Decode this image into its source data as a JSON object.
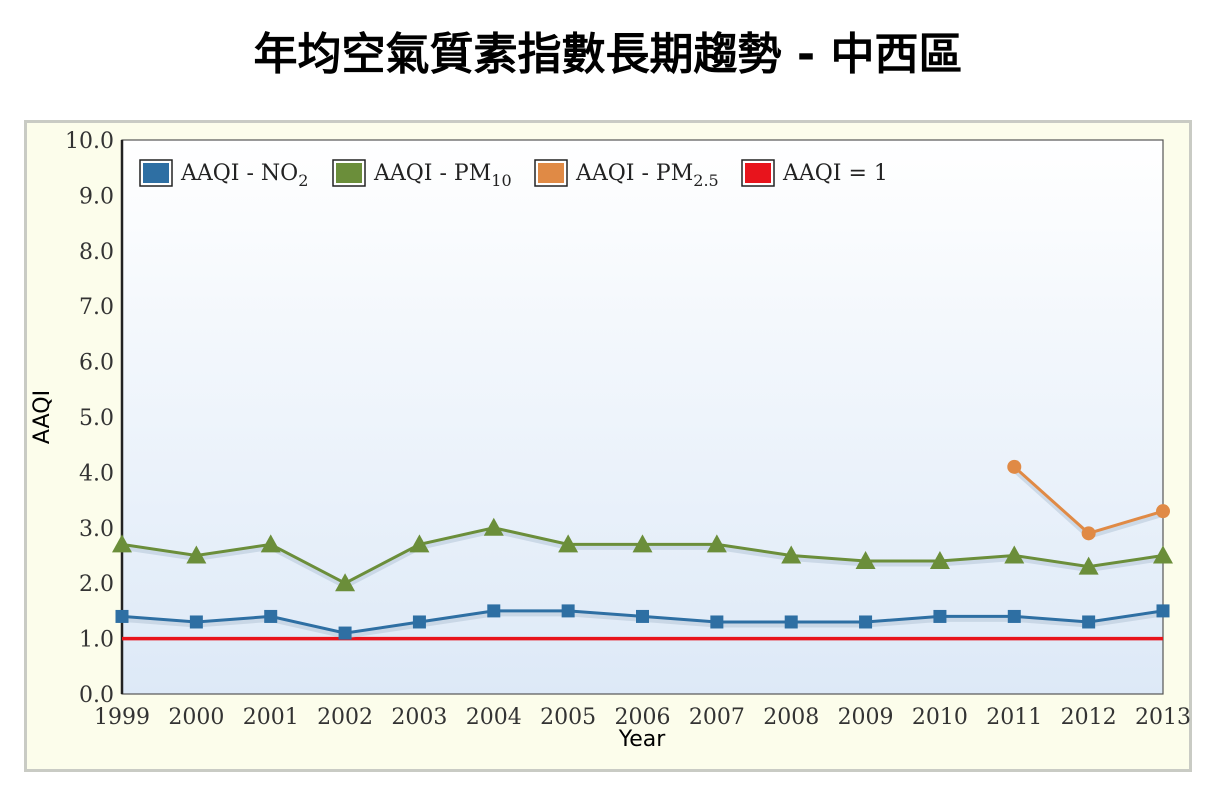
{
  "page": {
    "title": "年均空氣質素指數長期趨勢 - 中西區"
  },
  "chart_data": {
    "type": "line",
    "xlabel": "Year",
    "ylabel": "AAQI",
    "ylim": [
      0,
      10
    ],
    "ytick_step": 1,
    "categories": [
      "1999",
      "2000",
      "2001",
      "2002",
      "2003",
      "2004",
      "2005",
      "2006",
      "2007",
      "2008",
      "2009",
      "2010",
      "2011",
      "2012",
      "2013"
    ],
    "legend_position": "top-left",
    "series": [
      {
        "name": "AAQI - NO",
        "name_sub": "2",
        "color": "#2e6fa3",
        "marker": "square",
        "values": [
          1.4,
          1.3,
          1.4,
          1.1,
          1.3,
          1.5,
          1.5,
          1.4,
          1.3,
          1.3,
          1.3,
          1.4,
          1.4,
          1.3,
          1.5
        ]
      },
      {
        "name": "AAQI - PM",
        "name_sub": "10",
        "color": "#6b8e3a",
        "marker": "triangle",
        "values": [
          2.7,
          2.5,
          2.7,
          2.0,
          2.7,
          3.0,
          2.7,
          2.7,
          2.7,
          2.5,
          2.4,
          2.4,
          2.5,
          2.3,
          2.5
        ]
      },
      {
        "name": "AAQI - PM",
        "name_sub": "2.5",
        "color": "#e08a45",
        "marker": "circle",
        "values": [
          null,
          null,
          null,
          null,
          null,
          null,
          null,
          null,
          null,
          null,
          null,
          null,
          4.1,
          2.9,
          3.3
        ]
      },
      {
        "name": "AAQI = 1",
        "name_sub": "",
        "color": "#e8141c",
        "marker": "none",
        "values": [
          1,
          1,
          1,
          1,
          1,
          1,
          1,
          1,
          1,
          1,
          1,
          1,
          1,
          1,
          1
        ]
      }
    ]
  }
}
